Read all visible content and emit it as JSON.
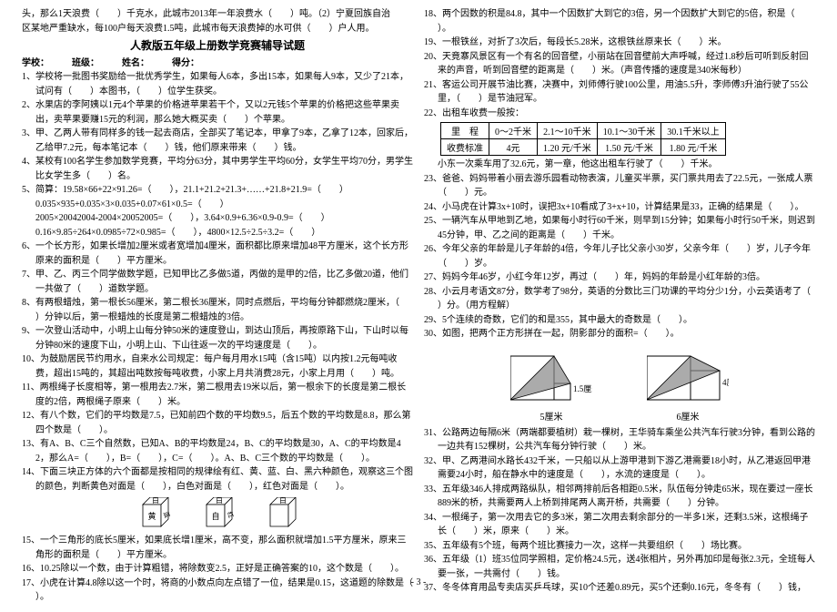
{
  "intro": [
    "头，那么1天浪费（　　）千克水，此城市2013年一年浪费水（　　）吨。（2）宁夏回族自治",
    "区某地严重缺水，每100户每天浪费1.5吨，此城市每天浪费掉的水可供（　　）户人用。"
  ],
  "title": "人教版五年级上册数学竞赛辅导试题",
  "form": "学校：　　　班级：　　　姓名：　　　得分：",
  "left": [
    {
      "n": "1",
      "t": "学校将一批图书奖励给一批优秀学生，如果每人6本，多出15本，如果每人9本，又少了21本，试问有（　　）本图书，（　　）位学生获奖。"
    },
    {
      "n": "2",
      "t": "水果店的李阿姨以1元4个苹果的价格进苹果若干个，又以2元钱5个苹果的价格把这些苹果卖出，卖苹果要赚15元的利润，那么她大概买卖（　　）个苹果。"
    },
    {
      "n": "3",
      "t": "甲、乙两人带有同样多的钱一起去商店，全部买了笔记本，甲拿了9本，乙拿了12本，回家后，乙给甲7.2元，每本笔记本（　　）钱，他们原来带来（　　）钱。"
    },
    {
      "n": "4",
      "t": "某校有100名学生参加数学竞赛，平均分63分，其中男学生平均60分，女学生平均70分，男学生比女学生多（　　）名。"
    },
    {
      "n": "5",
      "t": "简算：19.58×66+22×91.26=（　　），21.1+21.2+21.3+……+21.8+21.9=（　　）"
    },
    {
      "n": "",
      "t": "0.035×935+0.035×3×0.035+0.07×61×0.5=（　　）"
    },
    {
      "n": "",
      "t": "2005×20042004-2004×20052005=（　　），3.64×0.9+6.36×0.9-0.9=（　　）"
    },
    {
      "n": "",
      "t": "0.16×9.85÷264×0.0985÷72×0.985=（　　），4800×12.5÷2.5÷3.2=（　　）"
    },
    {
      "n": "6",
      "t": "一个长方形，如果长增加2厘米或者宽增加4厘米，面积都比原来增加48平方厘米，这个长方形原来的面积是（　　）平方厘米。"
    },
    {
      "n": "7",
      "t": "甲、乙、丙三个同学做数学题，已知甲比乙多做5道，丙做的是甲的2倍，比乙多做20道，他们一共做了（　　）道数学题。"
    },
    {
      "n": "8",
      "t": "有两根蜡烛，第一根长56厘米，第二根长36厘米，同时点燃后，平均每分钟都燃烧2厘米，（　　）分钟以后，第一根蜡烛的长度是第二根蜡烛的3倍。"
    },
    {
      "n": "9",
      "t": "一次登山活动中，小明上山每分钟50米的速度登山，到达山顶后，再按原路下山，下山时以每分钟80米的速度下山，小明上山、下山往返一次的平均速度是（　　）。"
    },
    {
      "n": "10",
      "t": "为鼓励居民节约用水，自来水公司规定：每户每月用水15吨（含15吨）以内按1.2元每吨收费，超出15吨的，其超出吨数按每吨收费，小家上月共消费28元，小家上月用（　　）吨。"
    },
    {
      "n": "11",
      "t": "两根绳子长度相等，第一根用去2.7米，第二根用去19米以后，第一根余下的长度是第二根长度的2倍，两根绳子原来（　　）米。"
    },
    {
      "n": "12",
      "t": "有八个数，它们的平均数是7.5，已知前四个数的平均数9.5，后五个数的平均数是8.8，那么第四个数是（　　）。"
    },
    {
      "n": "13",
      "t": "有A、B、C三个自然数，已知A、B的平均数是24，B、C的平均数是30，A、C的平均数是42，那么A=（　　），B=（　　），C=（　　）。A、B、C三个数的平均数是（　　）。"
    },
    {
      "n": "14",
      "t": "下面三块正方体的六个面都是按相同的规律绘有红、黄、蓝、白、黑六种颜色，观察这三个图的颜色，判断黄色对面是（　　），白色对面是（　　），红色对面是（　　）。"
    },
    {
      "n": "15",
      "t": "一个三角形的底长5厘米，如果底长增1厘米，高不变，那么面积就增加1.5平方厘米，原来三角形的面积是（　　）平方厘米。"
    },
    {
      "n": "16",
      "t": "10.25除以一个数，由于计算粗错，将除数变2.5，正好是正确答案的10，这个数是（　　）。"
    },
    {
      "n": "17",
      "t": "小虎在计算4.8除以这一个时，将商的小数点向左点错了一位，结果是0.15，这道题的除数是（　　）。"
    }
  ],
  "cubes": {
    "labels": [
      "白",
      "黄",
      "白",
      "白",
      "蓝",
      "红"
    ]
  },
  "right": [
    {
      "n": "18",
      "t": "两个因数的积是84.8，其中一个因数扩大到它的3倍，另一个因数扩大到它的5倍，积是（　　）。"
    },
    {
      "n": "19",
      "t": "一根铁丝，对折了3次后，每段长5.28米，这根铁丝原来长（　　）米。"
    },
    {
      "n": "20",
      "t": "天竟寨风景区有一个有名的回音壁，小丽站在回音壁前大声呼喊，经过1.8秒后可听到反射回来的声音，听到回音壁的距离是（　　）米。（声音传播的速度是340米每秒）"
    },
    {
      "n": "21",
      "t": "客运公司开展节油比赛，决赛中，刘师傅行驶100公里，用油5.5升，李师傅3升油行驶了55公里，（　　）是节油冠军。"
    },
    {
      "n": "22",
      "t": "出租车收费一般按：",
      "table": true
    },
    {
      "n": "",
      "t": "小东一次乘车用了32.6元，第一章，他这出租车行驶了（　　）千米。"
    },
    {
      "n": "23",
      "t": "爸爸、妈妈带着小丽去游乐园看动物表演，儿童买半票，买门票共用去了22.5元，一张成人票（　　）元。"
    },
    {
      "n": "24",
      "t": "小马虎在计算3x+10时，误把3x+10看成了3+x+10，计算结果是33，正确的结果是（　　）。"
    },
    {
      "n": "25",
      "t": "一辆汽车从甲地到乙地，如果每小时行60千米，则早到15分钟；如果每小时行50千米，则迟到45分钟，甲、乙之间的距离是（　　）千米。"
    },
    {
      "n": "26",
      "t": "今年父亲的年龄是儿子年龄的4倍，今年儿子比父亲小30岁，父亲今年（　　）岁，儿子今年（　　）岁。"
    },
    {
      "n": "27",
      "t": "妈妈今年46岁，小红今年12岁，再过（　　）年，妈妈的年龄是小红年龄的3倍。"
    },
    {
      "n": "28",
      "t": "小云月考语文87分，数学考了98分，英语的分数比三门功课的平均分少1分，小云英语考了（　　）分。（用方程解）"
    },
    {
      "n": "29",
      "t": "5个连续的奇数，它们的和是355，其中最大的奇数是（　　）。"
    },
    {
      "n": "30",
      "t": "如图，把两个正方形拼在一起，阴影部分的面积=（　　）。"
    },
    {
      "n": "31",
      "t": "公路两边每隔6米（两端都要植树）栽一棵树，王华骑车乘坐公共汽车行驶3分钟，看到公路的一边共有152棵树，公共汽车每分钟行驶（　　）米。"
    },
    {
      "n": "32",
      "t": "甲、乙两港间水路长432千米，一只船以从上游甲港到下游乙港需要18小时，从乙港返回甲港需要24小时，船在静水中的速度是（　　），水流的速度是（　　）。"
    },
    {
      "n": "33",
      "t": "五年级346人排成两路纵队，相邻两排前后各相距0.5米，队伍每分钟走65米，现在要过一座长889米的桥，共需要两人上桥到排尾两人离开桥，共需要（　　）分钟。"
    },
    {
      "n": "34",
      "t": "一根绳子，第一次用去它的多3米，第二次用去剩余部分的一半多1米，还剩3.5米，这根绳子长（　　）米，原来（　　）米。"
    },
    {
      "n": "35",
      "t": "五年级有5个班，每两个班比赛接力一次，这样一共要组织（　　）场比赛。"
    },
    {
      "n": "36",
      "t": "五年级（1）班35位同学照相，定价格24.5元，送4张相片，另外再加印是每张2.3元，全班每人要一张，一共需付（　　）钱。"
    },
    {
      "n": "37",
      "t": "冬冬体育用品专卖店买乒乓球，买10个还差0.89元，买5个还剩0.16元，冬冬有（　　）钱，"
    }
  ],
  "table": {
    "rows": [
      [
        "里　程",
        "0～2千米",
        "2.1～10千米",
        "10.1～30千米",
        "30.1千米以上"
      ],
      [
        "收费标准",
        "4元",
        "1.20 元/千米",
        "1.50 元/千米",
        "1.80 元/千米"
      ]
    ]
  },
  "figs": {
    "left": {
      "w": "5厘米",
      "side": "1.5厘米"
    },
    "right": {
      "w": "6厘米",
      "side": "4厘米"
    }
  },
  "pagenum": "- 3 -"
}
